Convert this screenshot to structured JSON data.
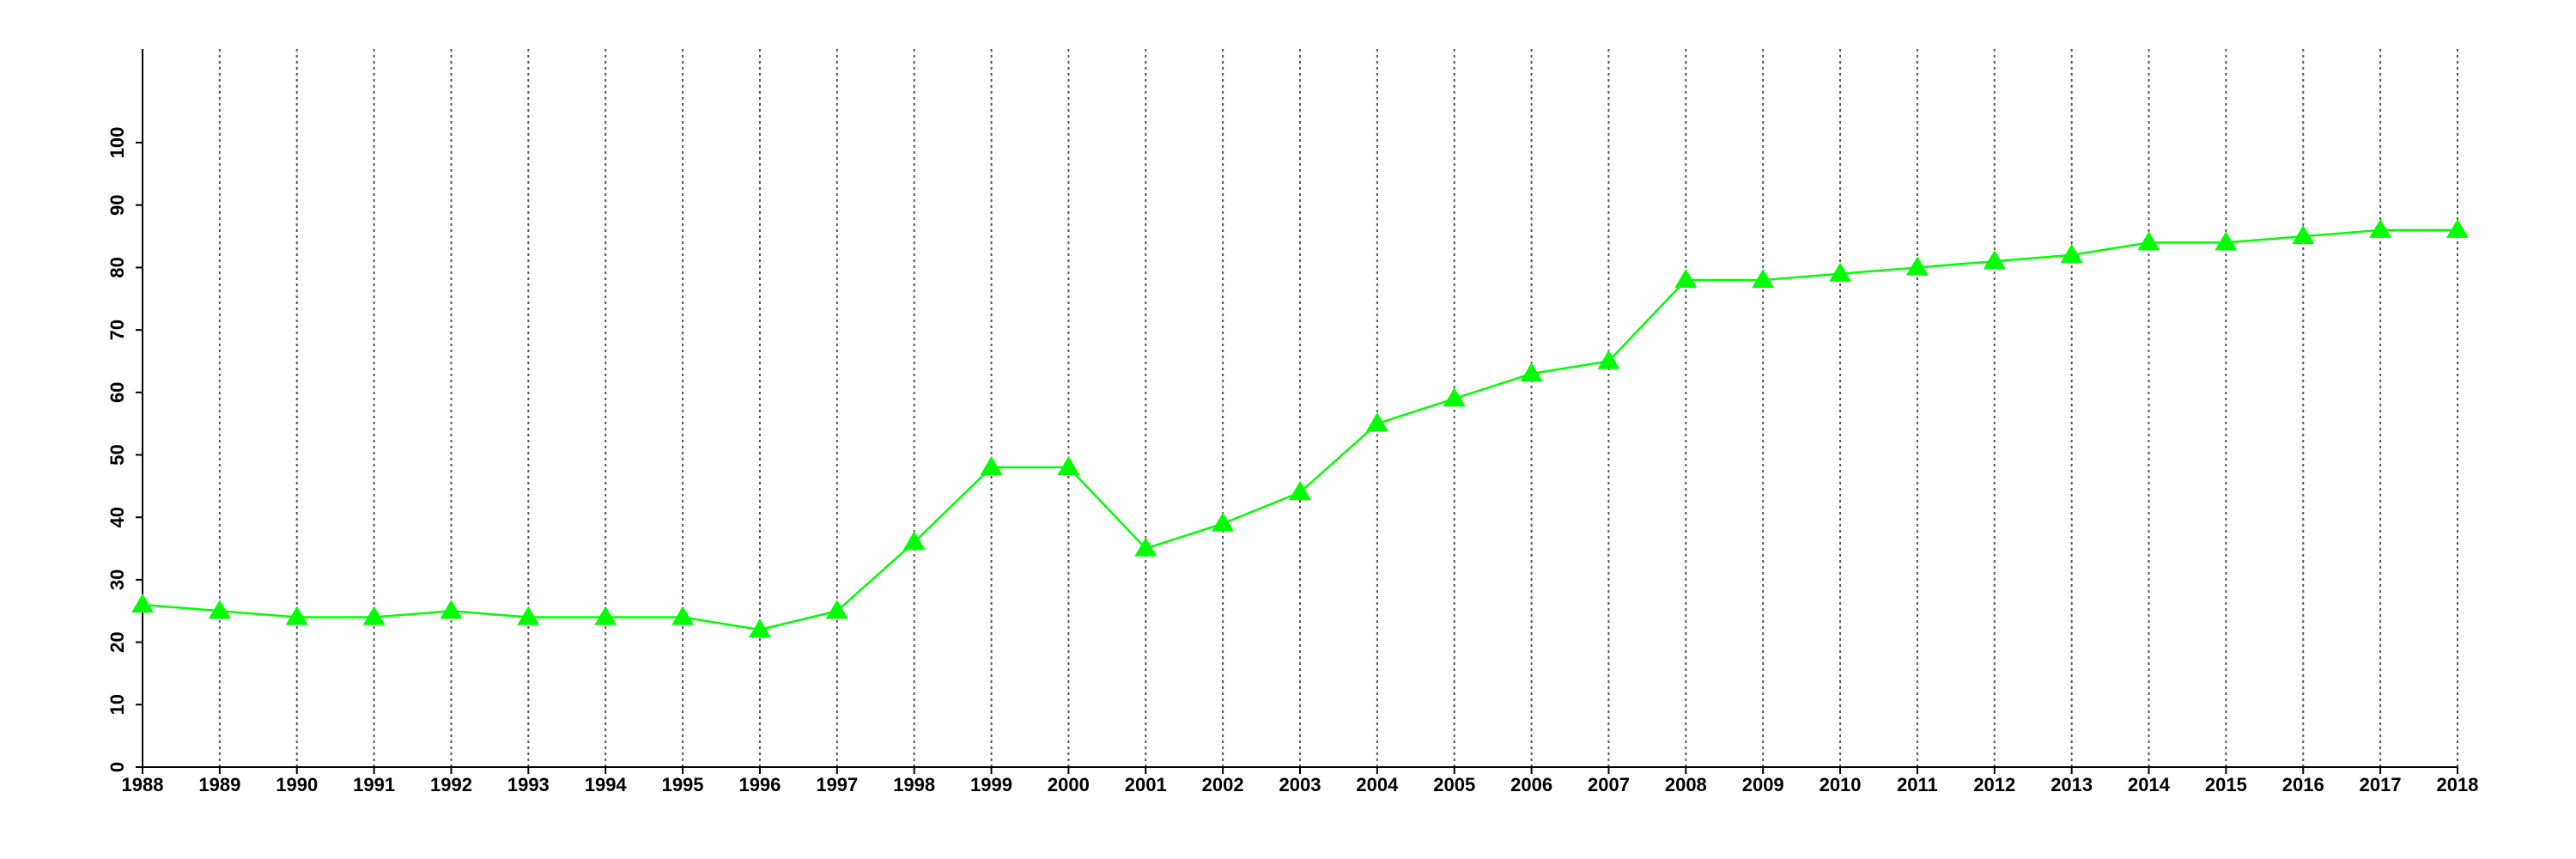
{
  "chart_data": {
    "type": "line",
    "x": [
      1988,
      1989,
      1990,
      1991,
      1992,
      1993,
      1994,
      1995,
      1996,
      1997,
      1998,
      1999,
      2000,
      2001,
      2002,
      2003,
      2004,
      2005,
      2006,
      2007,
      2008,
      2009,
      2010,
      2011,
      2012,
      2013,
      2014,
      2015,
      2016,
      2017,
      2018
    ],
    "series": [
      {
        "color": "#00ff00",
        "marker": "triangle",
        "values": [
          26,
          25,
          24,
          24,
          25,
          24,
          24,
          24,
          22,
          25,
          36,
          48,
          48,
          35,
          39,
          44,
          55,
          59,
          63,
          65,
          78,
          78,
          79,
          80,
          81,
          82,
          84,
          84,
          85,
          86,
          86
        ]
      }
    ],
    "xlim": [
      1988,
      2018
    ],
    "xticks": [
      1988,
      1989,
      1990,
      1991,
      1992,
      1993,
      1994,
      1995,
      1996,
      1997,
      1998,
      1999,
      2000,
      2001,
      2002,
      2003,
      2004,
      2005,
      2006,
      2007,
      2008,
      2009,
      2010,
      2011,
      2012,
      2013,
      2014,
      2015,
      2016,
      2017,
      2018
    ],
    "ylim": [
      0,
      115
    ],
    "yticks": [
      0,
      10,
      20,
      30,
      40,
      50,
      60,
      70,
      80,
      90,
      100
    ],
    "grid": "x"
  }
}
